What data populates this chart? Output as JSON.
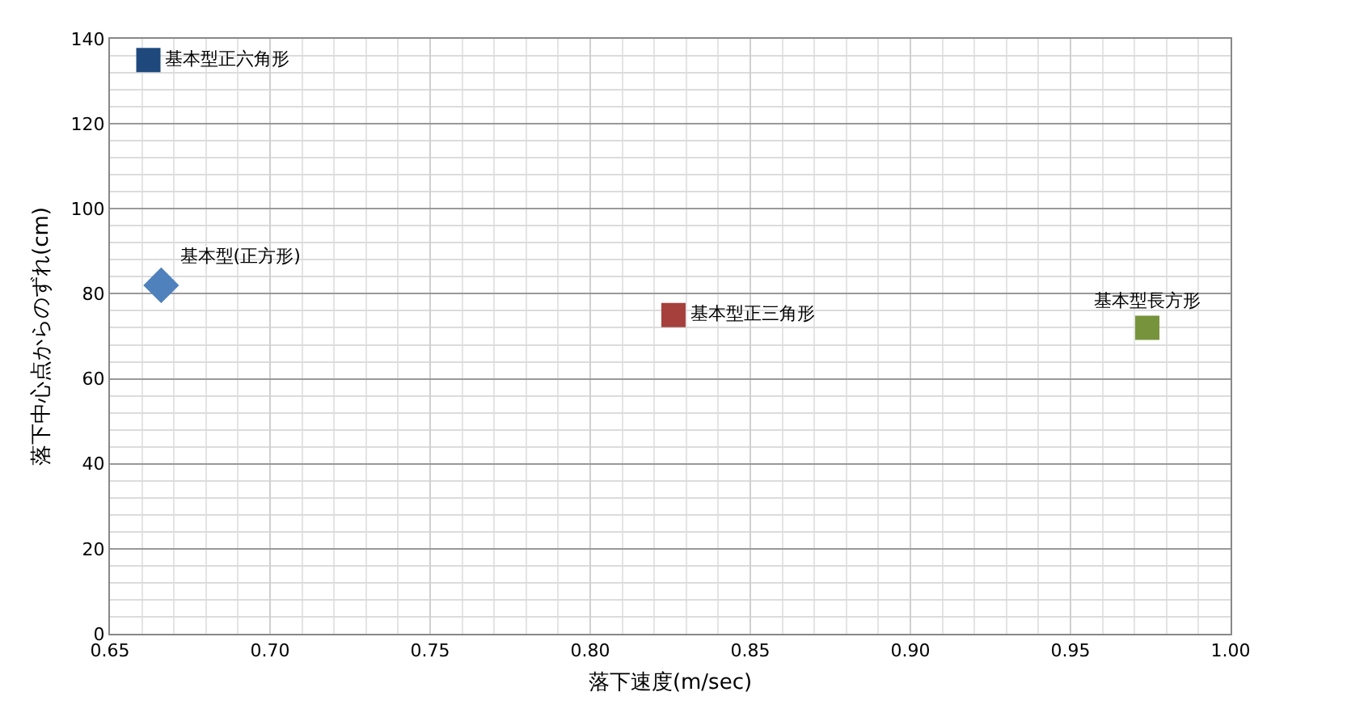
{
  "chart_data": {
    "type": "scatter",
    "xlabel": "落下速度(m/sec)",
    "ylabel": "落下中心点からのずれ(cm)",
    "xlim": [
      0.65,
      1.0
    ],
    "xticks": [
      0.65,
      {
        "value": 0.7,
        "label": "0.70"
      },
      0.75,
      {
        "value": 0.8,
        "label": "0.80"
      },
      0.85,
      {
        "value": 0.9,
        "label": "0.90"
      },
      0.95,
      {
        "value": 1.0,
        "label": "1.00"
      }
    ],
    "ylim": [
      0,
      140
    ],
    "yticks": [
      0,
      20,
      40,
      60,
      80,
      100,
      120,
      140
    ],
    "grid": true,
    "legend": false,
    "series": [
      {
        "name": "基本型正六角形",
        "color": "#1f497d",
        "marker": "square",
        "x": [
          0.662
        ],
        "values": [
          135
        ]
      },
      {
        "name": "基本型(正方形)",
        "color": "#4f81bd",
        "marker": "diamond",
        "x": [
          0.666
        ],
        "values": [
          82
        ]
      },
      {
        "name": "基本型正三角形",
        "color": "#a5403d",
        "marker": "square",
        "x": [
          0.826
        ],
        "values": [
          75
        ]
      },
      {
        "name": "基本型長方形",
        "color": "#77933c",
        "marker": "square",
        "x": [
          0.974
        ],
        "values": [
          72
        ]
      }
    ]
  }
}
